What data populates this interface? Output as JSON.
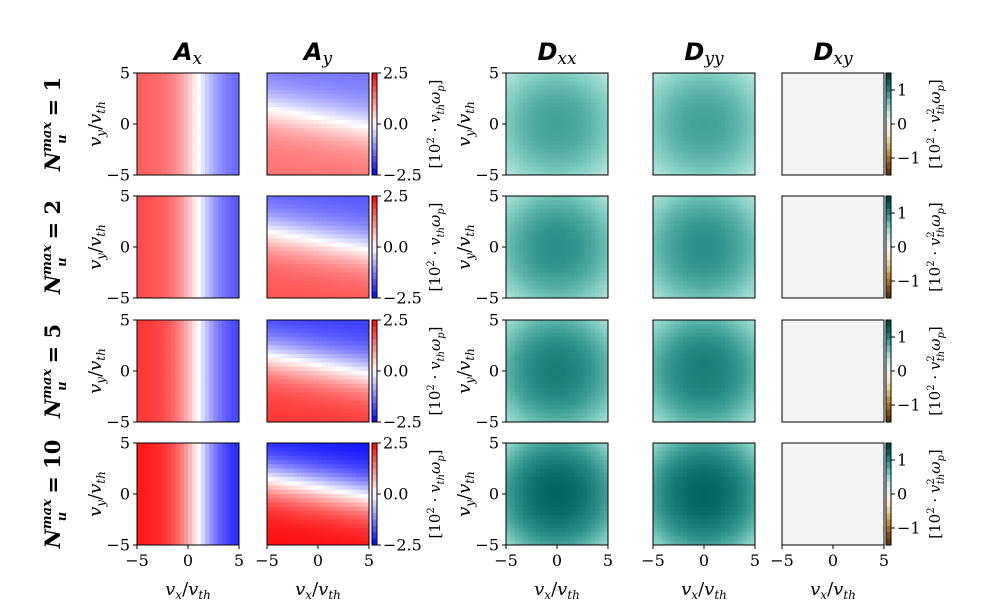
{
  "chart_data": {
    "type": "heatmap",
    "column_titles": [
      {
        "main": "A",
        "sub": "x"
      },
      {
        "main": "A",
        "sub": "y"
      },
      {
        "main": "D",
        "sub": "xx"
      },
      {
        "main": "D",
        "sub": "yy"
      },
      {
        "main": "D",
        "sub": "xy"
      }
    ],
    "row_labels": [
      {
        "main": "N",
        "sup": "max",
        "sub": "u",
        "value": "= 1"
      },
      {
        "main": "N",
        "sup": "max",
        "sub": "u",
        "value": "= 2"
      },
      {
        "main": "N",
        "sup": "max",
        "sub": "u",
        "value": "= 5"
      },
      {
        "main": "N",
        "sup": "max",
        "sub": "u",
        "value": "= 10"
      }
    ],
    "xlabel": {
      "num": "v",
      "num_sub": "x",
      "den": "v",
      "den_sub": "th"
    },
    "ylabel": {
      "num": "v",
      "num_sub": "y",
      "den": "v",
      "den_sub": "th"
    },
    "xlim": [
      -5,
      5
    ],
    "ylim": [
      -5,
      5
    ],
    "x_ticks": [
      "−5",
      "0",
      "5"
    ],
    "y_ticks": [
      "5",
      "0",
      "−5"
    ],
    "colorbar_A": {
      "cmap": "bwr",
      "range": [
        -2.5,
        2.5
      ],
      "ticks": [
        "2.5",
        "0.0",
        "−2.5"
      ],
      "label": "[10² · v_th ω_p]",
      "label_parts": {
        "prefix": "[10",
        "exp": "2",
        "mid": " · v",
        "sub1": "th",
        "omega": "ω",
        "sub2": "p",
        "suffix": "]"
      }
    },
    "colorbar_D": {
      "cmap": "BrBG",
      "range": [
        -1.5,
        1.5
      ],
      "ticks": [
        "1",
        "0",
        "−1"
      ],
      "label": "[10² · v²_th ω_p]",
      "label_parts": {
        "prefix": "[10",
        "exp": "2",
        "mid": " · v",
        "sup_v": "2",
        "sub1": "th",
        "omega": "ω",
        "sub2": "p",
        "suffix": "]"
      }
    },
    "panels": {
      "A_x": {
        "structure": "horizontal gradient, red for v_x < 0, blue for v_x > 0, zero near v_x ≈ 1",
        "peak_magnitude": [
          1.6,
          1.8,
          2.0,
          2.3
        ]
      },
      "A_y": {
        "structure": "vertical gradient, blue for v_y > 0, red for v_y < 0, slight tilt",
        "peak_magnitude": [
          1.4,
          1.7,
          2.0,
          2.4
        ]
      },
      "D_xx": {
        "structure": "nearly uniform teal, darker in center",
        "center_value": [
          0.85,
          0.95,
          1.05,
          1.2
        ]
      },
      "D_yy": {
        "structure": "nearly uniform teal, darker in center",
        "center_value": [
          0.85,
          0.95,
          1.05,
          1.2
        ]
      },
      "D_xy": {
        "structure": "near zero everywhere",
        "center_value": [
          0.0,
          0.0,
          0.0,
          0.0
        ]
      }
    },
    "colors": {
      "blue": "#0000ff",
      "red": "#ff0000",
      "white": "#ffffff",
      "teal_dark": "#003c30",
      "brown_dark": "#543005",
      "nearzero": "#f3f3f1"
    }
  }
}
